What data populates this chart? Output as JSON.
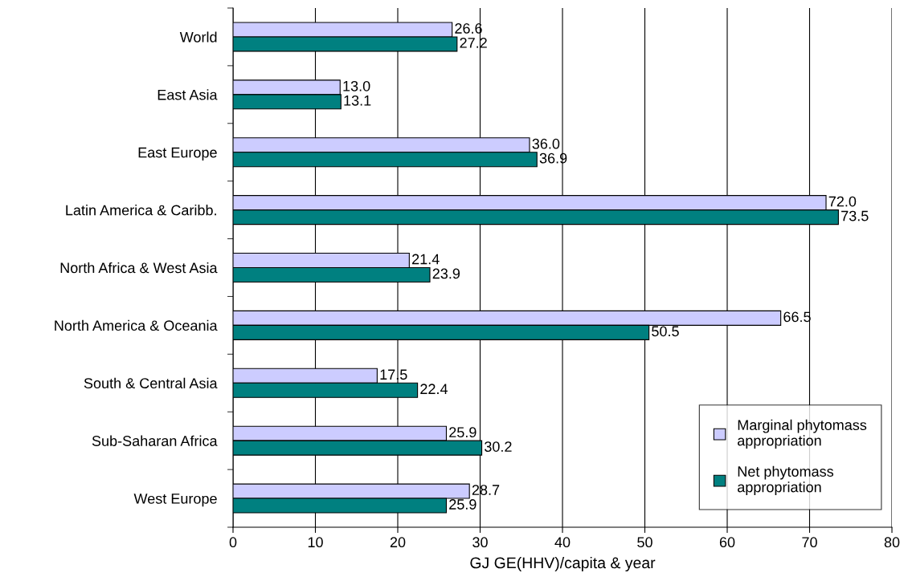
{
  "chart_data": {
    "type": "bar",
    "orientation": "horizontal",
    "xlabel": "GJ GE(HHV)/capita & year",
    "categories": [
      "World",
      "East Asia",
      "East Europe",
      "Latin America & Caribb.",
      "North Africa & West Asia",
      "North America & Oceania",
      "South & Central Asia",
      "Sub-Saharan Africa",
      "West Europe"
    ],
    "series": [
      {
        "name": "Marginal phytomass\nappropriation",
        "color": "#ccccff",
        "values": [
          26.6,
          13.0,
          36.0,
          72.0,
          21.4,
          66.5,
          17.5,
          25.9,
          28.7
        ],
        "value_labels": [
          "26.6",
          "13.0",
          "36.0",
          "72.0",
          "21.4",
          "66.5",
          "17.5",
          "25.9",
          "28.7"
        ]
      },
      {
        "name": "Net phytomass\nappropriation",
        "color": "#008080",
        "values": [
          27.2,
          13.1,
          36.9,
          73.5,
          23.9,
          50.5,
          22.4,
          30.2,
          25.9
        ],
        "value_labels": [
          "27.2",
          "13.1",
          "36.9",
          "73.5",
          "23.9",
          "50.5",
          "22.4",
          "30.2",
          "25.9"
        ]
      }
    ],
    "xlim": [
      0,
      80
    ],
    "xticks": [
      0,
      10,
      20,
      30,
      40,
      50,
      60,
      70,
      80
    ],
    "grid": "x",
    "legend": "bottom right"
  }
}
